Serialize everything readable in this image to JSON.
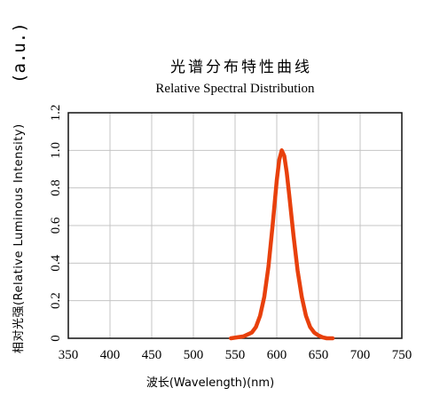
{
  "chart_data": {
    "type": "line",
    "title": "光谱分布特性曲线",
    "subtitle": "Relative Spectral Distribution",
    "xlabel": "波长(Wavelength)(nm)",
    "ylabel": "相对光强(Relative Luminous Intensity)",
    "ylabel_unit": "(a.u.)",
    "xlim": [
      350,
      750
    ],
    "ylim": [
      0,
      1.2
    ],
    "x_ticks": [
      350,
      400,
      450,
      500,
      550,
      600,
      650,
      700,
      750
    ],
    "y_ticks": [
      0,
      0.2,
      0.4,
      0.6,
      0.8,
      1.0,
      1.2
    ],
    "y_tick_labels": [
      "0",
      "0.2",
      "0.4",
      "0.6",
      "0.8",
      "1.0",
      "1.2"
    ],
    "grid": true,
    "series": [
      {
        "color": "#e8400c",
        "x": [
          545,
          560,
          570,
          575,
          580,
          585,
          590,
          595,
          600,
          603,
          606,
          609,
          612,
          615,
          620,
          625,
          630,
          635,
          640,
          645,
          650,
          655,
          660,
          667
        ],
        "y": [
          0,
          0.01,
          0.03,
          0.06,
          0.12,
          0.22,
          0.38,
          0.6,
          0.84,
          0.95,
          1.0,
          0.97,
          0.88,
          0.76,
          0.55,
          0.36,
          0.22,
          0.12,
          0.06,
          0.03,
          0.015,
          0.005,
          0,
          0
        ]
      }
    ]
  }
}
